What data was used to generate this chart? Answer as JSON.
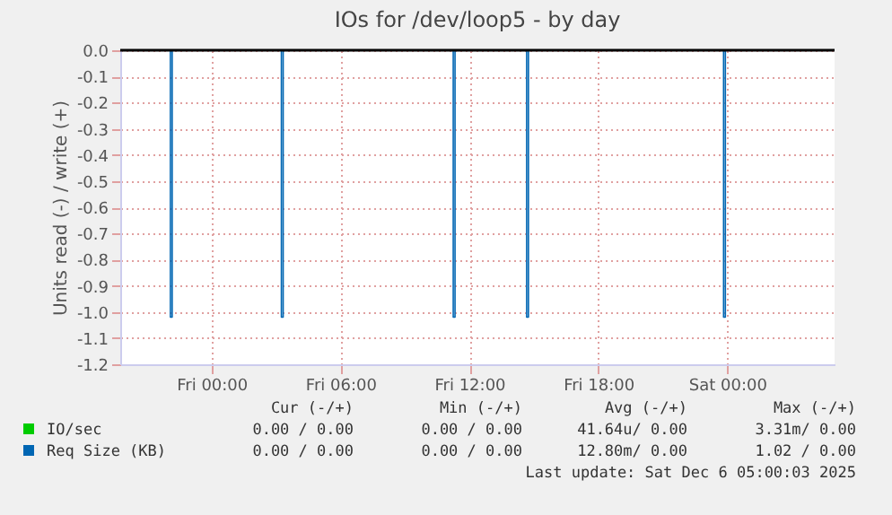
{
  "chart_data": {
    "type": "line",
    "title": "IOs for /dev/loop5 - by day",
    "ylabel": "Units read (-) / write (+)",
    "xlim": [
      "2025-12-04T19:45",
      "2025-12-06T05:00"
    ],
    "xticks": [
      {
        "value": "2025-12-05T00:00",
        "label": "Fri 00:00"
      },
      {
        "value": "2025-12-05T06:00",
        "label": "Fri 06:00"
      },
      {
        "value": "2025-12-05T12:00",
        "label": "Fri 12:00"
      },
      {
        "value": "2025-12-05T18:00",
        "label": "Fri 18:00"
      },
      {
        "value": "2025-12-06T00:00",
        "label": "Sat 00:00"
      }
    ],
    "ylim": [
      -1.2,
      0
    ],
    "yticks": [
      {
        "value": 0,
        "label": "0.0"
      },
      -0.1,
      -0.2,
      -0.3,
      -0.4,
      -0.5,
      -0.6,
      -0.7,
      -0.8,
      -0.9,
      {
        "value": -1,
        "label": "-1.0"
      },
      -1.1,
      -1.2
    ],
    "grid": true,
    "legend": "bottom left",
    "ref_lines": [
      {
        "axis": "y",
        "value": 0,
        "color": "#000000"
      }
    ],
    "series": [
      {
        "name": "IO/sec",
        "color": "#00cc00"
      },
      {
        "name": "Req Size (KB)",
        "color": "#0066b3",
        "x": [
          "2025-12-04T22:05",
          "2025-12-04T22:05",
          "2025-12-04T22:10",
          "2025-12-04T22:10",
          "2025-12-04T23:00",
          "2025-12-05T03:15",
          "2025-12-05T03:15",
          "2025-12-05T03:20",
          "2025-12-05T03:20",
          "2025-12-05T05:00",
          "2025-12-05T11:15",
          "2025-12-05T11:15",
          "2025-12-05T11:20",
          "2025-12-05T11:20",
          "2025-12-05T13:00",
          "2025-12-05T14:40",
          "2025-12-05T14:40",
          "2025-12-05T14:45",
          "2025-12-05T14:45",
          "2025-12-05T18:00",
          "2025-12-05T23:50",
          "2025-12-05T23:50",
          "2025-12-05T23:55",
          "2025-12-05T23:55"
        ],
        "values": [
          0,
          -1.02,
          -1.02,
          0,
          null,
          0,
          -1.02,
          -1.02,
          0,
          null,
          0,
          -1.02,
          -1.02,
          0,
          null,
          0,
          -1.02,
          -1.02,
          0,
          null,
          0,
          -1.02,
          -1.02,
          0
        ]
      }
    ],
    "annotations": [
      "Cur (-/+)",
      "Min (-/+)",
      "Avg (-/+)",
      "Max (-/+)",
      "0.00 / 0.00",
      "0.00 / 0.00",
      "41.64u/ 0.00",
      "3.31m/ 0.00",
      "0.00 / 0.00",
      "0.00 / 0.00",
      "12.80m/ 0.00",
      "1.02 / 0.00",
      "Last update: Sat Dec  6 05:00:03 2025"
    ]
  }
}
